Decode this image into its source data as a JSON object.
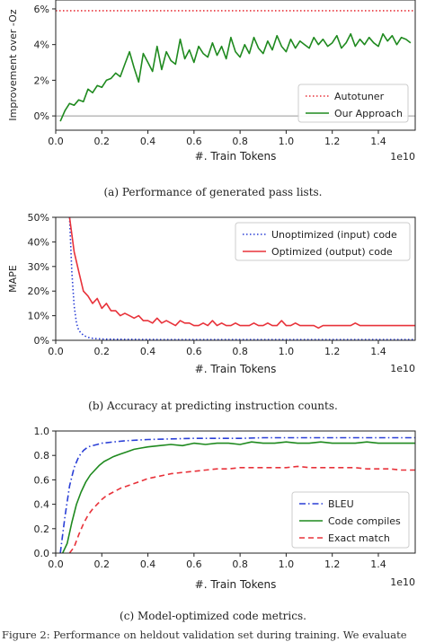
{
  "figure_caption": "Figure 2: Performance on heldout validation set during training. We evaluate",
  "chart_data": [
    {
      "type": "line",
      "caption": "(a) Performance of generated pass lists.",
      "xlabel": "#. Train Tokens",
      "x_multiplier_label": "1e10",
      "ylabel": "Improvement over -Oz",
      "xlim": [
        0.0,
        1.56
      ],
      "ylim": [
        -0.8,
        6.5
      ],
      "x_ticks": [
        "0.0",
        "0.2",
        "0.4",
        "0.6",
        "0.8",
        "1.0",
        "1.2",
        "1.4"
      ],
      "y_ticks": [
        "0%",
        "2%",
        "4%",
        "6%"
      ],
      "y_tick_values": [
        0,
        2,
        4,
        6
      ],
      "legend_position": "bottom-right",
      "reference_line_y": 0,
      "series": [
        {
          "name": "Autotuner",
          "style": "dotted",
          "color": "#e8323a",
          "x": [
            0.0,
            1.56
          ],
          "y": [
            5.9,
            5.9
          ]
        },
        {
          "name": "Our Approach",
          "style": "solid",
          "color": "#1f8a1f",
          "x": [
            0.02,
            0.04,
            0.06,
            0.08,
            0.1,
            0.12,
            0.14,
            0.16,
            0.18,
            0.2,
            0.22,
            0.24,
            0.26,
            0.28,
            0.3,
            0.32,
            0.34,
            0.36,
            0.38,
            0.4,
            0.42,
            0.44,
            0.46,
            0.48,
            0.5,
            0.52,
            0.54,
            0.56,
            0.58,
            0.6,
            0.62,
            0.64,
            0.66,
            0.68,
            0.7,
            0.72,
            0.74,
            0.76,
            0.78,
            0.8,
            0.82,
            0.84,
            0.86,
            0.88,
            0.9,
            0.92,
            0.94,
            0.96,
            0.98,
            1.0,
            1.02,
            1.04,
            1.06,
            1.08,
            1.1,
            1.12,
            1.14,
            1.16,
            1.18,
            1.2,
            1.22,
            1.24,
            1.26,
            1.28,
            1.3,
            1.32,
            1.34,
            1.36,
            1.38,
            1.4,
            1.42,
            1.44,
            1.46,
            1.48,
            1.5,
            1.52,
            1.54
          ],
          "y": [
            -0.3,
            0.3,
            0.7,
            0.6,
            0.9,
            0.8,
            1.5,
            1.3,
            1.7,
            1.6,
            2.0,
            2.1,
            2.4,
            2.2,
            2.9,
            3.6,
            2.7,
            1.9,
            3.5,
            3.0,
            2.5,
            3.9,
            2.6,
            3.6,
            3.1,
            2.9,
            4.3,
            3.2,
            3.7,
            3.0,
            3.9,
            3.5,
            3.3,
            4.1,
            3.4,
            3.9,
            3.2,
            4.4,
            3.6,
            3.3,
            4.0,
            3.5,
            4.4,
            3.8,
            3.5,
            4.2,
            3.7,
            4.5,
            3.9,
            3.6,
            4.3,
            3.8,
            4.2,
            4.0,
            3.8,
            4.4,
            4.0,
            4.3,
            3.9,
            4.1,
            4.5,
            3.8,
            4.1,
            4.6,
            3.9,
            4.3,
            4.0,
            4.4,
            4.1,
            3.9,
            4.6,
            4.2,
            4.5,
            4.0,
            4.4,
            4.3,
            4.1
          ]
        }
      ]
    },
    {
      "type": "line",
      "caption": "(b) Accuracy at predicting instruction counts.",
      "xlabel": "#. Train Tokens",
      "x_multiplier_label": "1e10",
      "ylabel": "MAPE",
      "xlim": [
        0.0,
        1.56
      ],
      "ylim": [
        0,
        50
      ],
      "x_ticks": [
        "0.0",
        "0.2",
        "0.4",
        "0.6",
        "0.8",
        "1.0",
        "1.2",
        "1.4"
      ],
      "y_ticks": [
        "0%",
        "10%",
        "20%",
        "30%",
        "40%",
        "50%"
      ],
      "y_tick_values": [
        0,
        10,
        20,
        30,
        40,
        50
      ],
      "legend_position": "top-right",
      "series": [
        {
          "name": "Unoptimized (input) code",
          "style": "dotted",
          "color": "#2a3fd6",
          "x": [
            0.06,
            0.07,
            0.08,
            0.09,
            0.1,
            0.12,
            0.14,
            0.16,
            0.2,
            0.3,
            0.5,
            1.0,
            1.56
          ],
          "y": [
            50,
            28,
            14,
            7,
            4,
            2,
            1.2,
            0.8,
            0.5,
            0.4,
            0.3,
            0.3,
            0.3
          ]
        },
        {
          "name": "Optimized (output) code",
          "style": "solid",
          "color": "#e8323a",
          "x": [
            0.06,
            0.08,
            0.1,
            0.12,
            0.14,
            0.16,
            0.18,
            0.2,
            0.22,
            0.24,
            0.26,
            0.28,
            0.3,
            0.32,
            0.34,
            0.36,
            0.38,
            0.4,
            0.42,
            0.44,
            0.46,
            0.48,
            0.5,
            0.52,
            0.54,
            0.56,
            0.58,
            0.6,
            0.62,
            0.64,
            0.66,
            0.68,
            0.7,
            0.72,
            0.74,
            0.76,
            0.78,
            0.8,
            0.82,
            0.84,
            0.86,
            0.88,
            0.9,
            0.92,
            0.94,
            0.96,
            0.98,
            1.0,
            1.02,
            1.04,
            1.06,
            1.08,
            1.1,
            1.12,
            1.14,
            1.16,
            1.18,
            1.2,
            1.22,
            1.24,
            1.26,
            1.28,
            1.3,
            1.32,
            1.34,
            1.36,
            1.38,
            1.4,
            1.42,
            1.44,
            1.46,
            1.48,
            1.5,
            1.52,
            1.54,
            1.56
          ],
          "y": [
            50,
            36,
            28,
            20,
            18,
            15,
            17,
            13,
            15,
            12,
            12,
            10,
            11,
            10,
            9,
            10,
            8,
            8,
            7,
            9,
            7,
            8,
            7,
            6,
            8,
            7,
            7,
            6,
            6,
            7,
            6,
            8,
            6,
            7,
            6,
            6,
            7,
            6,
            6,
            6,
            7,
            6,
            6,
            7,
            6,
            6,
            8,
            6,
            6,
            7,
            6,
            6,
            6,
            6,
            5,
            6,
            6,
            6,
            6,
            6,
            6,
            6,
            7,
            6,
            6,
            6,
            6,
            6,
            6,
            6,
            6,
            6,
            6,
            6,
            6,
            6
          ]
        }
      ]
    },
    {
      "type": "line",
      "caption": "(c) Model-optimized code metrics.",
      "xlabel": "#. Train Tokens",
      "x_multiplier_label": "1e10",
      "ylabel": "",
      "xlim": [
        0.0,
        1.56
      ],
      "ylim": [
        0.0,
        1.0
      ],
      "x_ticks": [
        "0.0",
        "0.2",
        "0.4",
        "0.6",
        "0.8",
        "1.0",
        "1.2",
        "1.4"
      ],
      "y_ticks": [
        "0.0",
        "0.2",
        "0.4",
        "0.6",
        "0.8",
        "1.0"
      ],
      "y_tick_values": [
        0.0,
        0.2,
        0.4,
        0.6,
        0.8,
        1.0
      ],
      "legend_position": "bottom-right",
      "series": [
        {
          "name": "BLEU",
          "style": "dashdot",
          "color": "#2a3fd6",
          "x": [
            0.02,
            0.04,
            0.06,
            0.08,
            0.1,
            0.12,
            0.14,
            0.16,
            0.18,
            0.2,
            0.25,
            0.3,
            0.35,
            0.4,
            0.5,
            0.6,
            0.7,
            0.8,
            0.9,
            1.0,
            1.1,
            1.2,
            1.3,
            1.4,
            1.5,
            1.56
          ],
          "y": [
            0.0,
            0.3,
            0.55,
            0.7,
            0.79,
            0.84,
            0.87,
            0.88,
            0.89,
            0.9,
            0.91,
            0.92,
            0.925,
            0.93,
            0.935,
            0.94,
            0.94,
            0.94,
            0.945,
            0.945,
            0.945,
            0.945,
            0.945,
            0.945,
            0.945,
            0.945
          ]
        },
        {
          "name": "Code compiles",
          "style": "solid",
          "color": "#1f8a1f",
          "x": [
            0.03,
            0.05,
            0.07,
            0.09,
            0.11,
            0.13,
            0.15,
            0.17,
            0.19,
            0.21,
            0.23,
            0.25,
            0.28,
            0.31,
            0.34,
            0.37,
            0.4,
            0.45,
            0.5,
            0.55,
            0.6,
            0.65,
            0.7,
            0.75,
            0.8,
            0.85,
            0.9,
            0.95,
            1.0,
            1.05,
            1.1,
            1.15,
            1.2,
            1.25,
            1.3,
            1.35,
            1.4,
            1.45,
            1.5,
            1.56
          ],
          "y": [
            0.0,
            0.08,
            0.25,
            0.4,
            0.5,
            0.58,
            0.64,
            0.68,
            0.72,
            0.75,
            0.77,
            0.79,
            0.81,
            0.83,
            0.85,
            0.86,
            0.87,
            0.88,
            0.89,
            0.88,
            0.9,
            0.89,
            0.9,
            0.9,
            0.89,
            0.91,
            0.9,
            0.9,
            0.91,
            0.9,
            0.9,
            0.91,
            0.9,
            0.9,
            0.9,
            0.91,
            0.9,
            0.9,
            0.9,
            0.9
          ]
        },
        {
          "name": "Exact match",
          "style": "dashed",
          "color": "#e8323a",
          "x": [
            0.06,
            0.08,
            0.1,
            0.12,
            0.14,
            0.16,
            0.18,
            0.2,
            0.22,
            0.25,
            0.28,
            0.31,
            0.34,
            0.37,
            0.4,
            0.45,
            0.5,
            0.55,
            0.6,
            0.65,
            0.7,
            0.75,
            0.8,
            0.85,
            0.9,
            0.95,
            1.0,
            1.05,
            1.1,
            1.15,
            1.2,
            1.25,
            1.3,
            1.35,
            1.4,
            1.45,
            1.5,
            1.56
          ],
          "y": [
            0.0,
            0.05,
            0.15,
            0.24,
            0.31,
            0.36,
            0.4,
            0.44,
            0.47,
            0.5,
            0.53,
            0.55,
            0.57,
            0.59,
            0.61,
            0.63,
            0.65,
            0.66,
            0.67,
            0.68,
            0.69,
            0.69,
            0.7,
            0.7,
            0.7,
            0.7,
            0.7,
            0.71,
            0.7,
            0.7,
            0.7,
            0.7,
            0.7,
            0.69,
            0.69,
            0.69,
            0.68,
            0.68
          ]
        }
      ]
    }
  ]
}
